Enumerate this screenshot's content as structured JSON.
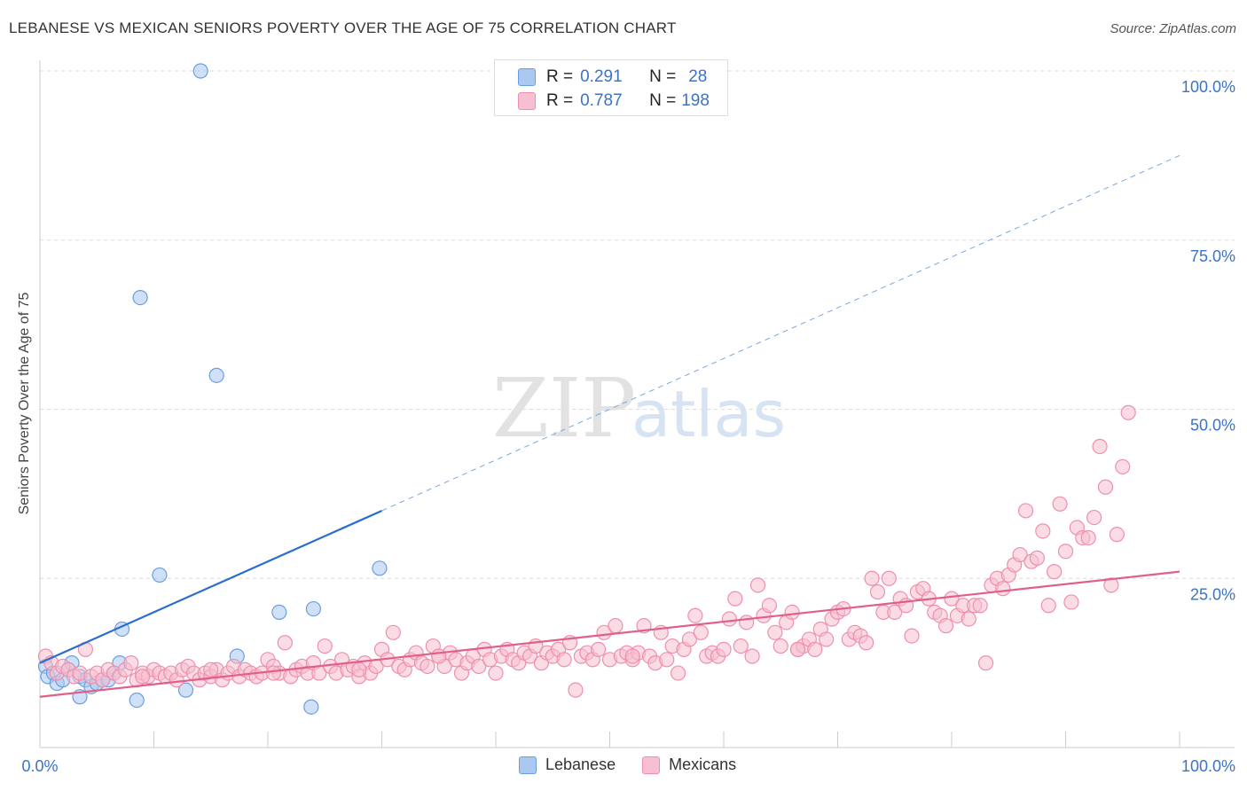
{
  "header": {
    "title": "LEBANESE VS MEXICAN SENIORS POVERTY OVER THE AGE OF 75 CORRELATION CHART",
    "source": "Source: ZipAtlas.com"
  },
  "watermark": {
    "zip": "ZIP",
    "atlas": "atlas"
  },
  "legend": {
    "rows": [
      {
        "r_label": "R =",
        "r_value": "0.291",
        "n_label": "N =",
        "n_value": "28",
        "color": "#aac8f0",
        "border": "#6b9ee0"
      },
      {
        "r_label": "R =",
        "r_value": "0.787",
        "n_label": "N =",
        "n_value": "198",
        "color": "#f7bfd0",
        "border": "#ee8fad"
      }
    ]
  },
  "bottom_legend": [
    {
      "label": "Lebanese",
      "color": "#aac8f0",
      "border": "#6b9ee0"
    },
    {
      "label": "Mexicans",
      "color": "#f7bfd0",
      "border": "#ee8fad"
    }
  ],
  "chart_data": {
    "type": "scatter",
    "ylabel": "Seniors Poverty Over the Age of 75",
    "xlim": [
      0,
      100
    ],
    "ylim": [
      0,
      100
    ],
    "x_tick_labels": [
      "0.0%",
      "100.0%"
    ],
    "y_tick_labels": [
      {
        "value": 100,
        "label": "100.0%"
      },
      {
        "value": 75,
        "label": "75.0%"
      },
      {
        "value": 50,
        "label": "50.0%"
      },
      {
        "value": 25,
        "label": "25.0%"
      }
    ],
    "grid": true,
    "series": [
      {
        "name": "Lebanese",
        "color": "#6b9ee0",
        "fill": "#aac8f0",
        "trend": {
          "x0": 0,
          "y0": 12.5,
          "x1": 30,
          "y1": 35.0,
          "dash_to_x": 100,
          "dash_to_y": 87.5,
          "color": "#2a6dd0"
        },
        "points": [
          [
            0.5,
            12.0
          ],
          [
            0.7,
            10.5
          ],
          [
            1.2,
            11.0
          ],
          [
            1.5,
            9.5
          ],
          [
            2.0,
            10.0
          ],
          [
            2.5,
            11.5
          ],
          [
            2.8,
            12.5
          ],
          [
            3.5,
            10.5
          ],
          [
            3.5,
            7.5
          ],
          [
            4.0,
            10.0
          ],
          [
            4.5,
            9.0
          ],
          [
            5.0,
            9.5
          ],
          [
            5.5,
            10.0
          ],
          [
            6.0,
            10.0
          ],
          [
            6.5,
            11.0
          ],
          [
            7.0,
            12.5
          ],
          [
            7.2,
            17.5
          ],
          [
            8.5,
            7.0
          ],
          [
            8.8,
            66.5
          ],
          [
            10.5,
            25.5
          ],
          [
            12.8,
            8.5
          ],
          [
            14.1,
            100.0
          ],
          [
            15.5,
            55.0
          ],
          [
            17.3,
            13.5
          ],
          [
            21.0,
            20.0
          ],
          [
            23.8,
            6.0
          ],
          [
            24.0,
            20.5
          ],
          [
            29.8,
            26.5
          ]
        ]
      },
      {
        "name": "Mexicans",
        "color": "#ee8fad",
        "fill": "#f7bfd0",
        "trend": {
          "x0": 0,
          "y0": 7.5,
          "x1": 100,
          "y1": 26.0,
          "color": "#e0608a"
        },
        "points": [
          [
            0.5,
            13.5
          ],
          [
            1.0,
            12.5
          ],
          [
            1.5,
            11.0
          ],
          [
            2.0,
            12.0
          ],
          [
            2.5,
            11.5
          ],
          [
            3.0,
            10.5
          ],
          [
            3.5,
            11.0
          ],
          [
            4.0,
            14.5
          ],
          [
            4.5,
            10.5
          ],
          [
            5.0,
            11.0
          ],
          [
            5.5,
            10.0
          ],
          [
            6.0,
            11.5
          ],
          [
            6.5,
            11.0
          ],
          [
            7.0,
            10.5
          ],
          [
            7.5,
            11.5
          ],
          [
            8.0,
            12.5
          ],
          [
            8.5,
            10.0
          ],
          [
            9.0,
            11.0
          ],
          [
            9.5,
            10.5
          ],
          [
            10.0,
            11.5
          ],
          [
            10.5,
            11.0
          ],
          [
            11.0,
            10.5
          ],
          [
            11.5,
            11.0
          ],
          [
            12.0,
            10.0
          ],
          [
            12.5,
            11.5
          ],
          [
            13.0,
            12.0
          ],
          [
            13.5,
            11.0
          ],
          [
            14.0,
            10.0
          ],
          [
            14.5,
            11.0
          ],
          [
            15.0,
            10.5
          ],
          [
            15.5,
            11.5
          ],
          [
            16.0,
            10.0
          ],
          [
            16.5,
            11.0
          ],
          [
            17.0,
            12.0
          ],
          [
            17.5,
            10.5
          ],
          [
            18.0,
            11.5
          ],
          [
            18.5,
            11.0
          ],
          [
            19.0,
            10.5
          ],
          [
            19.5,
            11.0
          ],
          [
            20.0,
            13.0
          ],
          [
            20.5,
            12.0
          ],
          [
            21.0,
            11.0
          ],
          [
            21.5,
            15.5
          ],
          [
            22.0,
            10.5
          ],
          [
            22.5,
            11.5
          ],
          [
            23.0,
            12.0
          ],
          [
            23.5,
            11.0
          ],
          [
            24.0,
            12.5
          ],
          [
            24.5,
            11.0
          ],
          [
            25.0,
            15.0
          ],
          [
            25.5,
            12.0
          ],
          [
            26.0,
            11.0
          ],
          [
            26.5,
            13.0
          ],
          [
            27.0,
            11.5
          ],
          [
            27.5,
            12.0
          ],
          [
            28.0,
            10.5
          ],
          [
            28.5,
            12.5
          ],
          [
            29.0,
            11.0
          ],
          [
            29.5,
            12.0
          ],
          [
            30.0,
            14.5
          ],
          [
            30.5,
            13.0
          ],
          [
            31.0,
            17.0
          ],
          [
            31.5,
            12.0
          ],
          [
            32.0,
            11.5
          ],
          [
            32.5,
            13.0
          ],
          [
            33.0,
            14.0
          ],
          [
            33.5,
            12.5
          ],
          [
            34.0,
            12.0
          ],
          [
            34.5,
            15.0
          ],
          [
            35.0,
            13.5
          ],
          [
            35.5,
            12.0
          ],
          [
            36.0,
            14.0
          ],
          [
            36.5,
            13.0
          ],
          [
            37.0,
            11.0
          ],
          [
            37.5,
            12.5
          ],
          [
            38.0,
            13.5
          ],
          [
            38.5,
            12.0
          ],
          [
            39.0,
            14.5
          ],
          [
            39.5,
            13.0
          ],
          [
            40.0,
            11.0
          ],
          [
            40.5,
            13.5
          ],
          [
            41.0,
            14.5
          ],
          [
            41.5,
            13.0
          ],
          [
            42.0,
            12.5
          ],
          [
            42.5,
            14.0
          ],
          [
            43.0,
            13.5
          ],
          [
            43.5,
            15.0
          ],
          [
            44.0,
            12.5
          ],
          [
            44.5,
            14.0
          ],
          [
            45.0,
            13.5
          ],
          [
            45.5,
            14.5
          ],
          [
            46.0,
            13.0
          ],
          [
            46.5,
            15.5
          ],
          [
            47.0,
            8.5
          ],
          [
            47.5,
            13.5
          ],
          [
            48.0,
            14.0
          ],
          [
            48.5,
            13.0
          ],
          [
            49.0,
            14.5
          ],
          [
            49.5,
            17.0
          ],
          [
            50.0,
            13.0
          ],
          [
            50.5,
            18.0
          ],
          [
            51.0,
            13.5
          ],
          [
            51.5,
            14.0
          ],
          [
            52.0,
            13.0
          ],
          [
            52.5,
            14.0
          ],
          [
            53.0,
            18.0
          ],
          [
            53.5,
            13.5
          ],
          [
            54.0,
            12.5
          ],
          [
            54.5,
            17.0
          ],
          [
            55.0,
            13.0
          ],
          [
            55.5,
            15.0
          ],
          [
            56.0,
            11.0
          ],
          [
            56.5,
            14.5
          ],
          [
            57.0,
            16.0
          ],
          [
            57.5,
            19.5
          ],
          [
            58.0,
            17.0
          ],
          [
            58.5,
            13.5
          ],
          [
            59.0,
            14.0
          ],
          [
            59.5,
            13.5
          ],
          [
            60.0,
            14.5
          ],
          [
            60.5,
            19.0
          ],
          [
            61.0,
            22.0
          ],
          [
            61.5,
            15.0
          ],
          [
            62.0,
            18.5
          ],
          [
            62.5,
            13.5
          ],
          [
            63.0,
            24.0
          ],
          [
            63.5,
            19.5
          ],
          [
            64.0,
            21.0
          ],
          [
            64.5,
            17.0
          ],
          [
            65.0,
            15.0
          ],
          [
            65.5,
            18.5
          ],
          [
            66.0,
            20.0
          ],
          [
            66.5,
            14.5
          ],
          [
            67.0,
            15.0
          ],
          [
            67.5,
            16.0
          ],
          [
            68.0,
            14.5
          ],
          [
            68.5,
            17.5
          ],
          [
            69.0,
            16.0
          ],
          [
            69.5,
            19.0
          ],
          [
            70.0,
            20.0
          ],
          [
            70.5,
            20.5
          ],
          [
            71.0,
            16.0
          ],
          [
            71.5,
            17.0
          ],
          [
            72.0,
            16.5
          ],
          [
            72.5,
            15.5
          ],
          [
            73.0,
            25.0
          ],
          [
            73.5,
            23.0
          ],
          [
            74.0,
            20.0
          ],
          [
            74.5,
            25.0
          ],
          [
            75.0,
            20.0
          ],
          [
            75.5,
            22.0
          ],
          [
            76.0,
            21.0
          ],
          [
            76.5,
            16.5
          ],
          [
            77.0,
            23.0
          ],
          [
            77.5,
            23.5
          ],
          [
            78.0,
            22.0
          ],
          [
            78.5,
            20.0
          ],
          [
            79.0,
            19.5
          ],
          [
            79.5,
            18.0
          ],
          [
            80.0,
            22.0
          ],
          [
            80.5,
            19.5
          ],
          [
            81.0,
            21.0
          ],
          [
            81.5,
            19.0
          ],
          [
            82.0,
            21.0
          ],
          [
            82.5,
            21.0
          ],
          [
            83.0,
            12.5
          ],
          [
            83.5,
            24.0
          ],
          [
            84.0,
            25.0
          ],
          [
            84.5,
            23.5
          ],
          [
            85.0,
            25.5
          ],
          [
            85.5,
            27.0
          ],
          [
            86.0,
            28.5
          ],
          [
            86.5,
            35.0
          ],
          [
            87.0,
            27.5
          ],
          [
            87.5,
            28.0
          ],
          [
            88.0,
            32.0
          ],
          [
            88.5,
            21.0
          ],
          [
            89.0,
            26.0
          ],
          [
            89.5,
            36.0
          ],
          [
            90.0,
            29.0
          ],
          [
            90.5,
            21.5
          ],
          [
            91.0,
            32.5
          ],
          [
            91.5,
            31.0
          ],
          [
            92.0,
            31.0
          ],
          [
            92.5,
            34.0
          ],
          [
            93.0,
            44.5
          ],
          [
            93.5,
            38.5
          ],
          [
            94.0,
            24.0
          ],
          [
            94.5,
            31.5
          ],
          [
            95.0,
            41.5
          ],
          [
            95.5,
            49.5
          ],
          [
            66.5,
            14.5
          ],
          [
            52.0,
            13.5
          ],
          [
            35.0,
            13.5
          ],
          [
            28.0,
            11.5
          ],
          [
            20.5,
            11.0
          ],
          [
            15.0,
            11.5
          ],
          [
            9.0,
            10.5
          ]
        ]
      }
    ]
  }
}
